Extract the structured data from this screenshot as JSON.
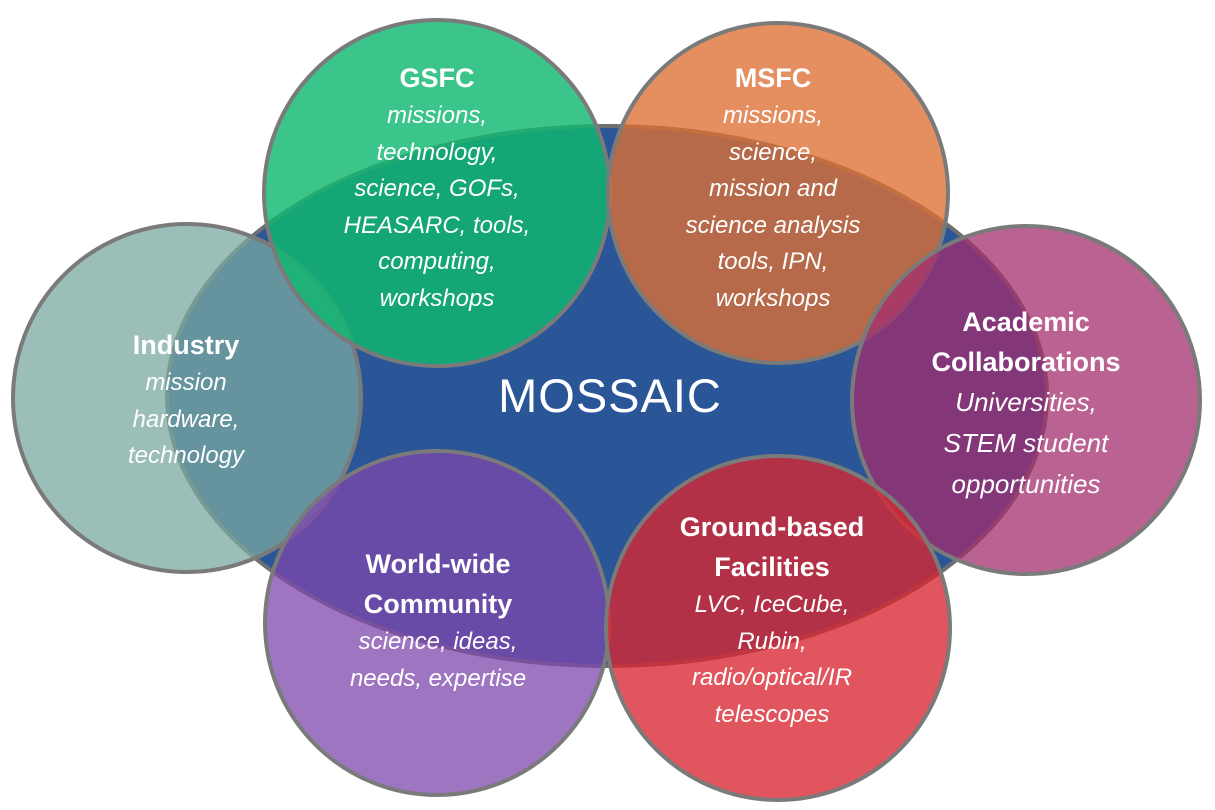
{
  "center": {
    "title": "MOSSAIC",
    "color": "#2A5698"
  },
  "nodes": {
    "gsfc": {
      "title": "GSFC",
      "lines": [
        "missions,",
        "technology,",
        "science, GOFs,",
        "HEASARC, tools,",
        "computing,",
        "workshops"
      ],
      "color": "#11B870"
    },
    "msfc": {
      "title": "MSFC",
      "lines": [
        "missions,",
        "science,",
        "mission and",
        "science analysis",
        "tools, IPN,",
        "workshops"
      ],
      "color": "#DE6F33"
    },
    "industry": {
      "title": "Industry",
      "lines": [
        "mission",
        "hardware,",
        "technology"
      ],
      "color": "#7AA8A0"
    },
    "academic": {
      "title": [
        "Academic",
        "Collaborations"
      ],
      "lines": [
        "Universities,",
        "STEM student",
        "opportunities"
      ],
      "color": "#A32D6E"
    },
    "world": {
      "title": [
        "World-wide",
        "Community"
      ],
      "lines": [
        "science, ideas,",
        "needs, expertise"
      ],
      "color": "#7E47AC"
    },
    "ground": {
      "title": [
        "Ground-based",
        "Facilities"
      ],
      "lines": [
        "LVC, IceCube,",
        "Rubin,",
        "radio/optical/IR",
        "telescopes"
      ],
      "color": "#D82631"
    }
  }
}
